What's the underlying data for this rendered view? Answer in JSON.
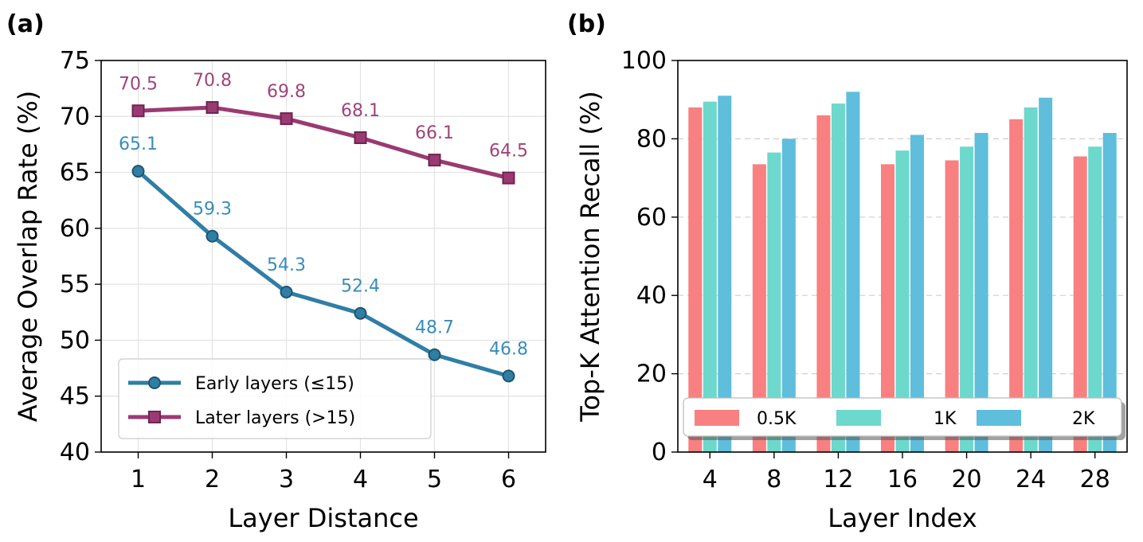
{
  "chart_data": [
    {
      "panel": "(a)",
      "type": "line",
      "xlabel": "Layer Distance",
      "ylabel": "Average Overlap Rate (%)",
      "x": [
        1,
        2,
        3,
        4,
        5,
        6
      ],
      "xlim": [
        0.5,
        6.5
      ],
      "ylim": [
        40,
        75
      ],
      "yticks": [
        40,
        45,
        50,
        55,
        60,
        65,
        70,
        75
      ],
      "grid": true,
      "legend_position": "lower-left",
      "series": [
        {
          "name": "Early layers (≤15)",
          "marker": "circle",
          "color": "#2f7ea6",
          "label_color": "#3a8db8",
          "values": [
            65.1,
            59.3,
            54.3,
            52.4,
            48.7,
            46.8
          ],
          "labels": [
            "65.1",
            "59.3",
            "54.3",
            "52.4",
            "48.7",
            "46.8"
          ]
        },
        {
          "name": "Later layers (>15)",
          "marker": "square",
          "color": "#9b3a72",
          "label_color": "#a14478",
          "values": [
            70.5,
            70.8,
            69.8,
            68.1,
            66.1,
            64.5
          ],
          "labels": [
            "70.5",
            "70.8",
            "69.8",
            "68.1",
            "66.1",
            "64.5"
          ]
        }
      ]
    },
    {
      "panel": "(b)",
      "type": "bar",
      "xlabel": "Layer Index",
      "ylabel": "Top-K Attention Recall (%)",
      "categories": [
        "4",
        "8",
        "12",
        "16",
        "20",
        "24",
        "28"
      ],
      "ylim": [
        0,
        100
      ],
      "yticks": [
        0,
        20,
        40,
        60,
        80,
        100
      ],
      "grid": "horizontal-dashed",
      "legend_position": "bottom",
      "series": [
        {
          "name": "0.5K",
          "color": "#f88080",
          "values": [
            88,
            73.5,
            86,
            73.5,
            74.5,
            85,
            75.5
          ]
        },
        {
          "name": "1K",
          "color": "#6dd8cc",
          "values": [
            89.5,
            76.5,
            89,
            77,
            78,
            88,
            78
          ]
        },
        {
          "name": "2K",
          "color": "#5ebedc",
          "values": [
            91,
            80,
            92,
            81,
            81.5,
            90.5,
            81.5
          ]
        }
      ]
    }
  ]
}
